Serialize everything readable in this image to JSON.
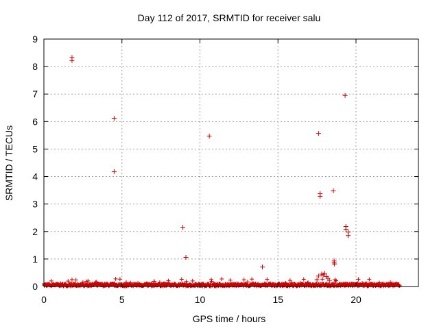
{
  "chart_data": {
    "type": "scatter",
    "title": "Day 112 of 2017, SRMTID for receiver salu",
    "xlabel": "GPS time / hours",
    "ylabel": "SRMTID / TECUs",
    "xlim": [
      0,
      24
    ],
    "ylim": [
      0,
      9
    ],
    "x_ticks": [
      0,
      5,
      10,
      15,
      20
    ],
    "y_ticks": [
      0,
      1,
      2,
      3,
      4,
      5,
      6,
      7,
      8,
      9
    ],
    "x_tick_labels": [
      "0",
      "5",
      "10",
      "15",
      "20"
    ],
    "y_tick_labels": [
      "0",
      "1",
      "2",
      "3",
      "4",
      "5",
      "6",
      "7",
      "8",
      "9"
    ],
    "grid": true,
    "marker": "+",
    "color": "#cc0000",
    "baseline": {
      "x_start": 0,
      "x_end": 22.8,
      "typical": 0.06,
      "max": 0.25
    },
    "points": [
      {
        "x": 1.8,
        "y": 8.33
      },
      {
        "x": 1.8,
        "y": 8.22
      },
      {
        "x": 4.5,
        "y": 6.12
      },
      {
        "x": 4.5,
        "y": 4.18
      },
      {
        "x": 8.9,
        "y": 2.15
      },
      {
        "x": 9.1,
        "y": 1.06
      },
      {
        "x": 10.6,
        "y": 5.47
      },
      {
        "x": 14.0,
        "y": 0.71
      },
      {
        "x": 17.6,
        "y": 5.57
      },
      {
        "x": 17.7,
        "y": 3.38
      },
      {
        "x": 17.7,
        "y": 3.28
      },
      {
        "x": 17.6,
        "y": 0.38
      },
      {
        "x": 17.8,
        "y": 0.45
      },
      {
        "x": 17.9,
        "y": 0.42
      },
      {
        "x": 18.0,
        "y": 0.48
      },
      {
        "x": 18.1,
        "y": 0.36
      },
      {
        "x": 18.2,
        "y": 0.3
      },
      {
        "x": 17.5,
        "y": 0.25
      },
      {
        "x": 18.3,
        "y": 0.22
      },
      {
        "x": 18.55,
        "y": 3.48
      },
      {
        "x": 18.6,
        "y": 0.93
      },
      {
        "x": 18.6,
        "y": 0.87
      },
      {
        "x": 18.62,
        "y": 0.82
      },
      {
        "x": 19.3,
        "y": 6.95
      },
      {
        "x": 19.35,
        "y": 2.18
      },
      {
        "x": 19.35,
        "y": 2.08
      },
      {
        "x": 19.5,
        "y": 1.98
      },
      {
        "x": 19.5,
        "y": 1.85
      }
    ]
  }
}
